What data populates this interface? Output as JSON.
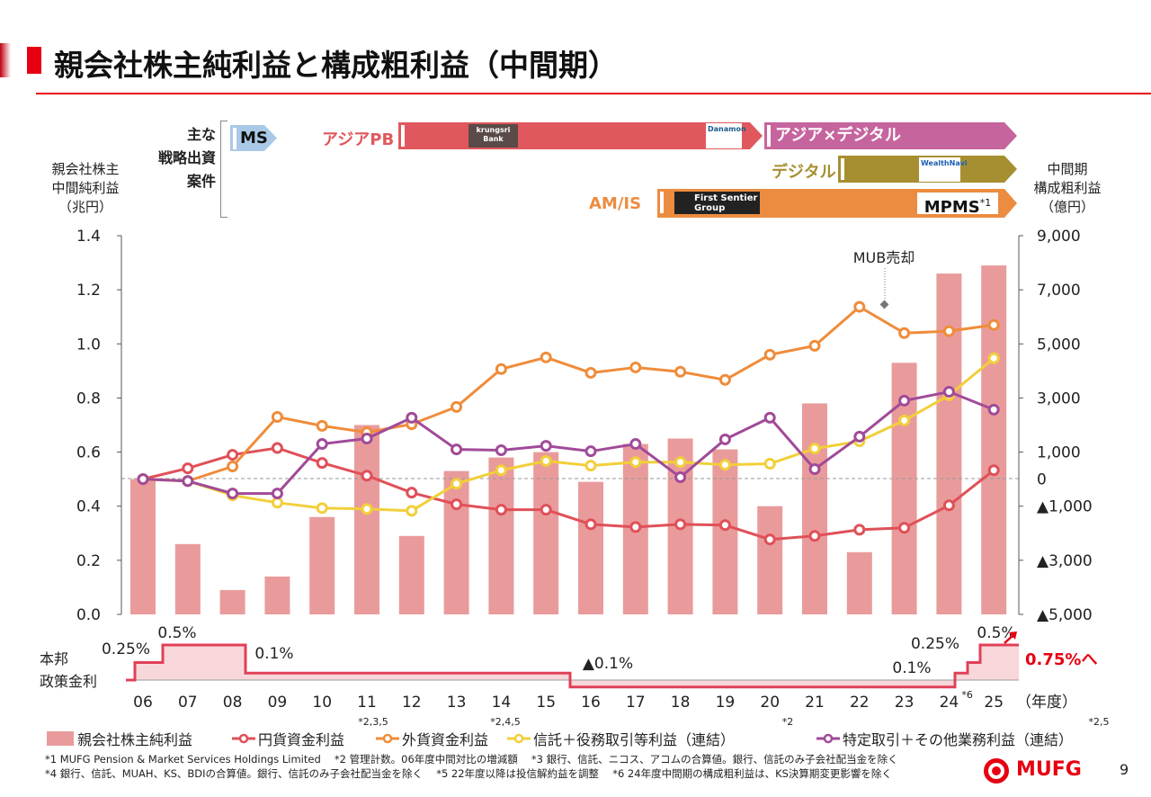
{
  "header": {
    "title": "親会社株主純利益と構成粗利益（中間期）"
  },
  "axis_titles": {
    "left": [
      "親会社株主",
      "中間純利益",
      "（兆円）"
    ],
    "right": [
      "中間期",
      "構成粗利益",
      "（億円）"
    ]
  },
  "strategy": {
    "heading": [
      "主な",
      "戦略出資",
      "案件"
    ],
    "ms": "MS",
    "asia_pb": "アジアPB",
    "asia_digital": "アジア×デジタル",
    "digital": "デジタル",
    "am_is": "AM/IS",
    "logos": {
      "krungsri": "krungsri Bank",
      "danamon": "Danamon",
      "wealthnavi": "WealthNavi",
      "first_sentier": "First Sentier Group"
    },
    "mpms": "MPMS",
    "mpms_note": "*1"
  },
  "colors": {
    "bar": "#e99b9b",
    "yen": "#e05058",
    "fx": "#ef8c3a",
    "trust": "#f2cf3a",
    "specific": "#a14a98",
    "rate": "#e04058",
    "brand": "#e60012"
  },
  "chart_data": {
    "type": "bar+line",
    "categories": [
      "06",
      "07",
      "08",
      "09",
      "10",
      "11",
      "12",
      "13",
      "14",
      "15",
      "16",
      "17",
      "18",
      "19",
      "20",
      "21",
      "22",
      "23",
      "24",
      "25"
    ],
    "category_notes": {
      "24": "*6"
    },
    "xlabel": "（年度）",
    "left_axis": {
      "ylim": [
        0,
        1.4
      ],
      "ticks": [
        "0.0",
        "0.2",
        "0.4",
        "0.6",
        "0.8",
        "1.0",
        "1.2",
        "1.4"
      ]
    },
    "right_axis": {
      "ylim": [
        -5000,
        9000
      ],
      "ticks": [
        {
          "v": 9000,
          "t": "9,000"
        },
        {
          "v": 7000,
          "t": "7,000"
        },
        {
          "v": 5000,
          "t": "5,000"
        },
        {
          "v": 3000,
          "t": "3,000"
        },
        {
          "v": 1000,
          "t": "1,000"
        },
        {
          "v": 0,
          "t": "0"
        },
        {
          "v": -1000,
          "t": "▲1,000"
        },
        {
          "v": -3000,
          "t": "▲3,000"
        },
        {
          "v": -5000,
          "t": "▲5,000"
        }
      ]
    },
    "bars": {
      "name": "親会社株主純利益",
      "axis": "left",
      "values": [
        0.5,
        0.26,
        0.09,
        0.14,
        0.36,
        0.7,
        0.29,
        0.53,
        0.58,
        0.6,
        0.49,
        0.63,
        0.65,
        0.61,
        0.4,
        0.78,
        0.23,
        0.93,
        1.26,
        1.29
      ]
    },
    "series": [
      {
        "name": "円貨資金利益",
        "note": "*2,3,5",
        "key": "yen",
        "values": [
          0,
          400,
          900,
          1150,
          600,
          130,
          -500,
          -930,
          -1130,
          -1130,
          -1670,
          -1770,
          -1670,
          -1700,
          -2230,
          -2100,
          -1870,
          -1800,
          -970,
          330
        ]
      },
      {
        "name": "外貨資金利益",
        "note": "*2,4,5",
        "key": "fx",
        "values": [
          0,
          -70,
          470,
          2300,
          1970,
          1730,
          2030,
          2670,
          4070,
          4500,
          3930,
          4130,
          3970,
          3670,
          4600,
          4930,
          6370,
          5400,
          5470,
          5700
        ]
      },
      {
        "name": "信託＋役務取引等利益（連結）",
        "note": "*2",
        "key": "trust",
        "values": [
          0,
          -70,
          -600,
          -870,
          -1070,
          -1100,
          -1170,
          -170,
          330,
          670,
          500,
          630,
          630,
          530,
          570,
          1130,
          1400,
          2170,
          3100,
          4470
        ]
      },
      {
        "name": "特定取引＋その他業務利益（連結）",
        "note": "*2,5",
        "key": "specific",
        "values": [
          0,
          -70,
          -530,
          -530,
          1300,
          1500,
          2270,
          1100,
          1070,
          1230,
          1030,
          1300,
          70,
          1470,
          2270,
          370,
          1570,
          2900,
          3230,
          2570
        ]
      }
    ],
    "annotation": "MUB売却",
    "grid": false,
    "legend": "bottom"
  },
  "policy_rate": {
    "label": [
      "本邦",
      "政策金利"
    ],
    "levels": [
      0,
      0.25,
      0.5,
      0.1,
      -0.1,
      0.1,
      0.25,
      0.5
    ],
    "labels": [
      "0.25%",
      "0.5%",
      "0.1%",
      "▲0.1%",
      "0.1%",
      "0.25%",
      "0.5%"
    ],
    "outlook": "0.75%へ"
  },
  "footnotes": [
    "*1  MUFG Pension & Market Services Holdings Limited　 *2  管理計数。06年度中間対比の増減額　 *3  銀行、信託、ニコス、アコムの合算値。銀行、信託のみ子会社配当金を除く",
    "*4  銀行、信託、MUAH、KS、BDIの合算値。銀行、信託のみ子会社配当金を除く　 *5  22年度以降は投信解約益を調整　 *6  24年度中間期の構成粗利益は、KS決算期変更影響を除く"
  ],
  "footer": {
    "brand": "MUFG",
    "page": "9"
  }
}
